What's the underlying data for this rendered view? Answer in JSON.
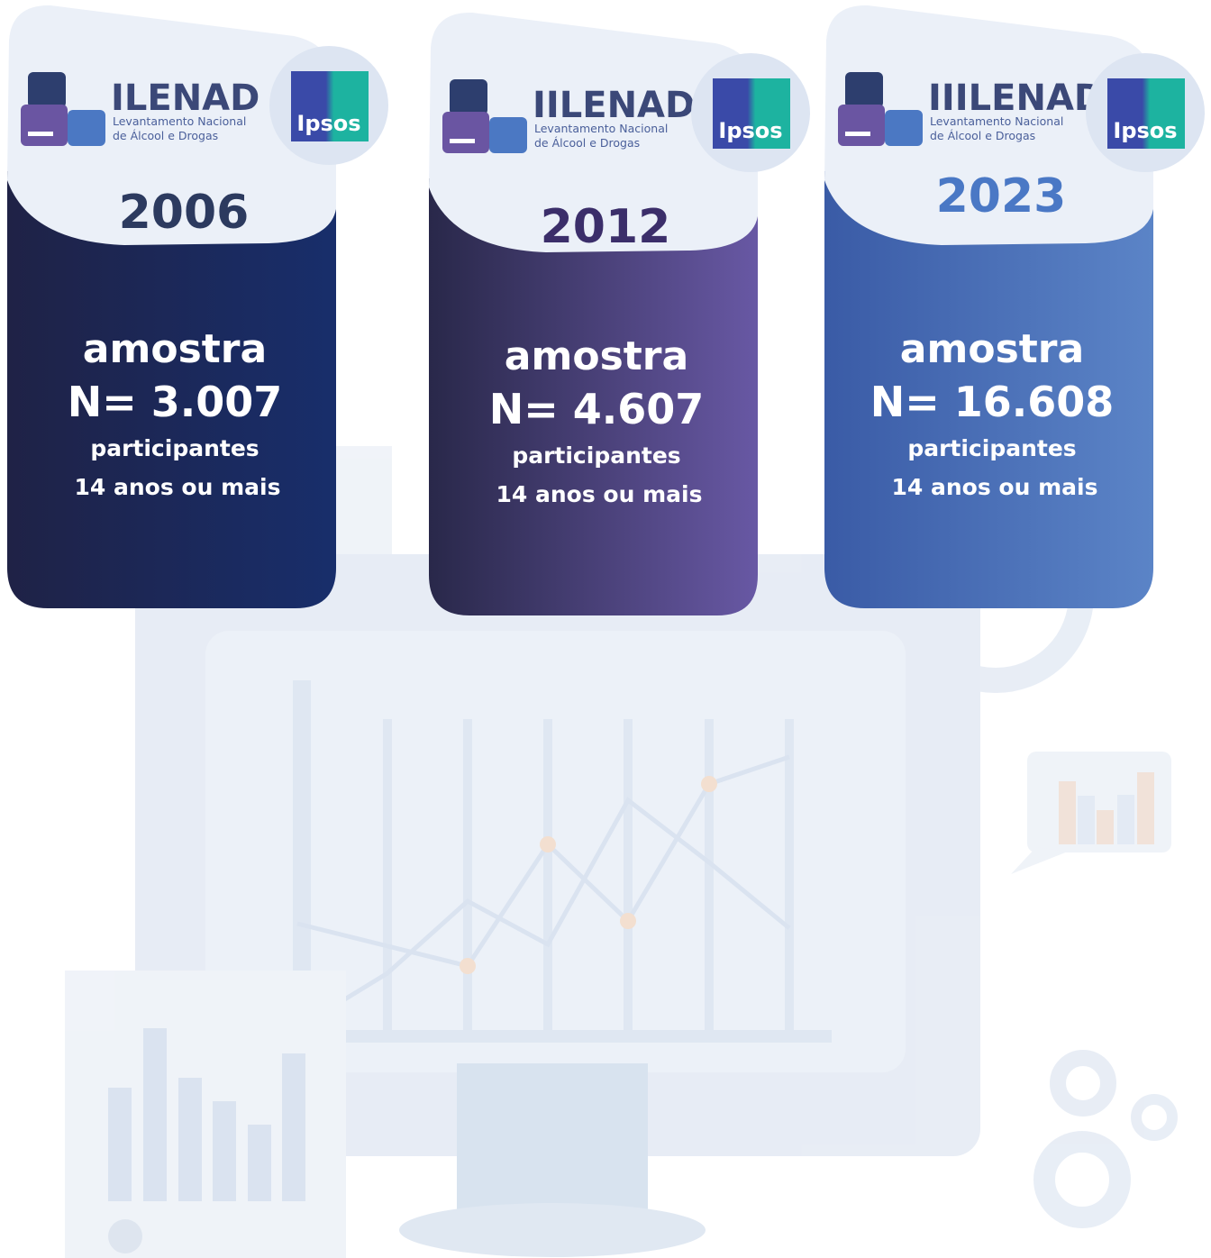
{
  "cards": [
    {
      "logo": {
        "name": "ILENAD",
        "line1": "Levantamento Nacional",
        "line2": "de Álcool e Drogas"
      },
      "partner": "Ipsos",
      "year": "2006",
      "label": "amostra",
      "sample": "N= 3.007",
      "unit": "participantes",
      "age": "14 anos ou mais"
    },
    {
      "logo": {
        "name": "IILENAD",
        "line1": "Levantamento Nacional",
        "line2": "de Álcool e Drogas"
      },
      "partner": "Ipsos",
      "year": "2012",
      "label": "amostra",
      "sample": "N= 4.607",
      "unit": "participantes",
      "age": "14 anos ou mais"
    },
    {
      "logo": {
        "name": "IIILENAD",
        "line1": "Levantamento Nacional",
        "line2": "de Álcool e Drogas"
      },
      "partner": "Ipsos",
      "year": "2023",
      "label": "amostra",
      "sample": "N= 16.608",
      "unit": "participantes",
      "age": "14 anos ou mais"
    }
  ]
}
